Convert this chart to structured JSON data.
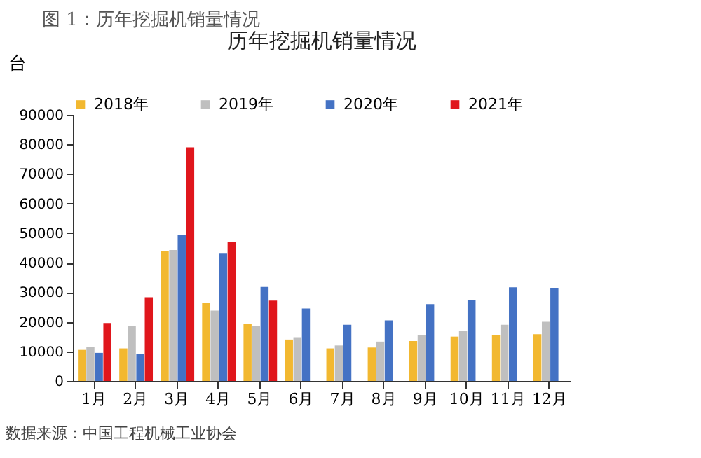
{
  "chart_data": {
    "type": "bar",
    "title": "图 1：历年挖掘机销量情况",
    "subtitle": "历年挖掘机销量情况",
    "ylabel": "台",
    "categories": [
      "1月",
      "2月",
      "3月",
      "4月",
      "5月",
      "6月",
      "7月",
      "8月",
      "9月",
      "10月",
      "11月",
      "12月"
    ],
    "series": [
      {
        "name": "2018年",
        "color": "#f2b830",
        "values": [
          10500,
          11000,
          44000,
          26500,
          19300,
          14000,
          11000,
          11300,
          13500,
          15000,
          15600,
          15800
        ]
      },
      {
        "name": "2019年",
        "color": "#bfbfbf",
        "values": [
          11500,
          18500,
          44300,
          23800,
          18500,
          14800,
          12000,
          13300,
          15400,
          17000,
          19000,
          20000
        ]
      },
      {
        "name": "2020年",
        "color": "#4472c4",
        "values": [
          9500,
          9000,
          49400,
          43300,
          31800,
          24500,
          19000,
          20500,
          26000,
          27300,
          31700,
          31500
        ]
      },
      {
        "name": "2021年",
        "color": "#e0161c",
        "values": [
          19600,
          28300,
          79000,
          47000,
          27200,
          null,
          null,
          null,
          null,
          null,
          null,
          null
        ]
      }
    ],
    "ylim": [
      0,
      90000
    ],
    "yticks": [
      0,
      10000,
      20000,
      30000,
      40000,
      50000,
      60000,
      70000,
      80000,
      90000
    ],
    "grid": false,
    "legend": "top",
    "annotations": [
      "数据来源：中国工程机械工业协会"
    ]
  }
}
